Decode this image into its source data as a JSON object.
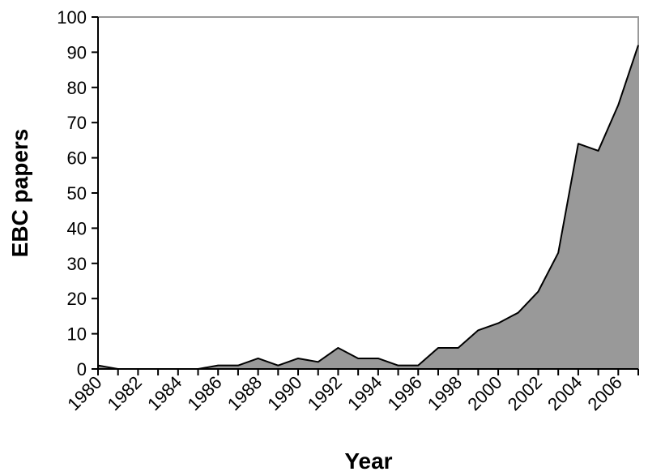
{
  "chart_data": {
    "type": "area",
    "title": "",
    "xlabel": "Year",
    "ylabel": "EBC papers",
    "xlim": [
      1980,
      2007
    ],
    "ylim": [
      0,
      100
    ],
    "yticks": [
      0,
      10,
      20,
      30,
      40,
      50,
      60,
      70,
      80,
      90,
      100
    ],
    "xticks": [
      1980,
      1982,
      1984,
      1986,
      1988,
      1990,
      1992,
      1994,
      1996,
      1998,
      2000,
      2002,
      2004,
      2006
    ],
    "grid": false,
    "legend": "none",
    "colors": {
      "fill": "#999999",
      "stroke": "#000000",
      "frame": "#999999"
    },
    "series": [
      {
        "x": [
          1980,
          1981,
          1982,
          1983,
          1984,
          1985,
          1986,
          1987,
          1988,
          1989,
          1990,
          1991,
          1992,
          1993,
          1994,
          1995,
          1996,
          1997,
          1998,
          1999,
          2000,
          2001,
          2002,
          2003,
          2004,
          2005,
          2006,
          2007
        ],
        "values": [
          1,
          0,
          0,
          0,
          0,
          0,
          1,
          1,
          3,
          1,
          3,
          2,
          6,
          3,
          3,
          1,
          1,
          6,
          6,
          11,
          13,
          16,
          22,
          33,
          64,
          62,
          75,
          92
        ]
      }
    ]
  }
}
